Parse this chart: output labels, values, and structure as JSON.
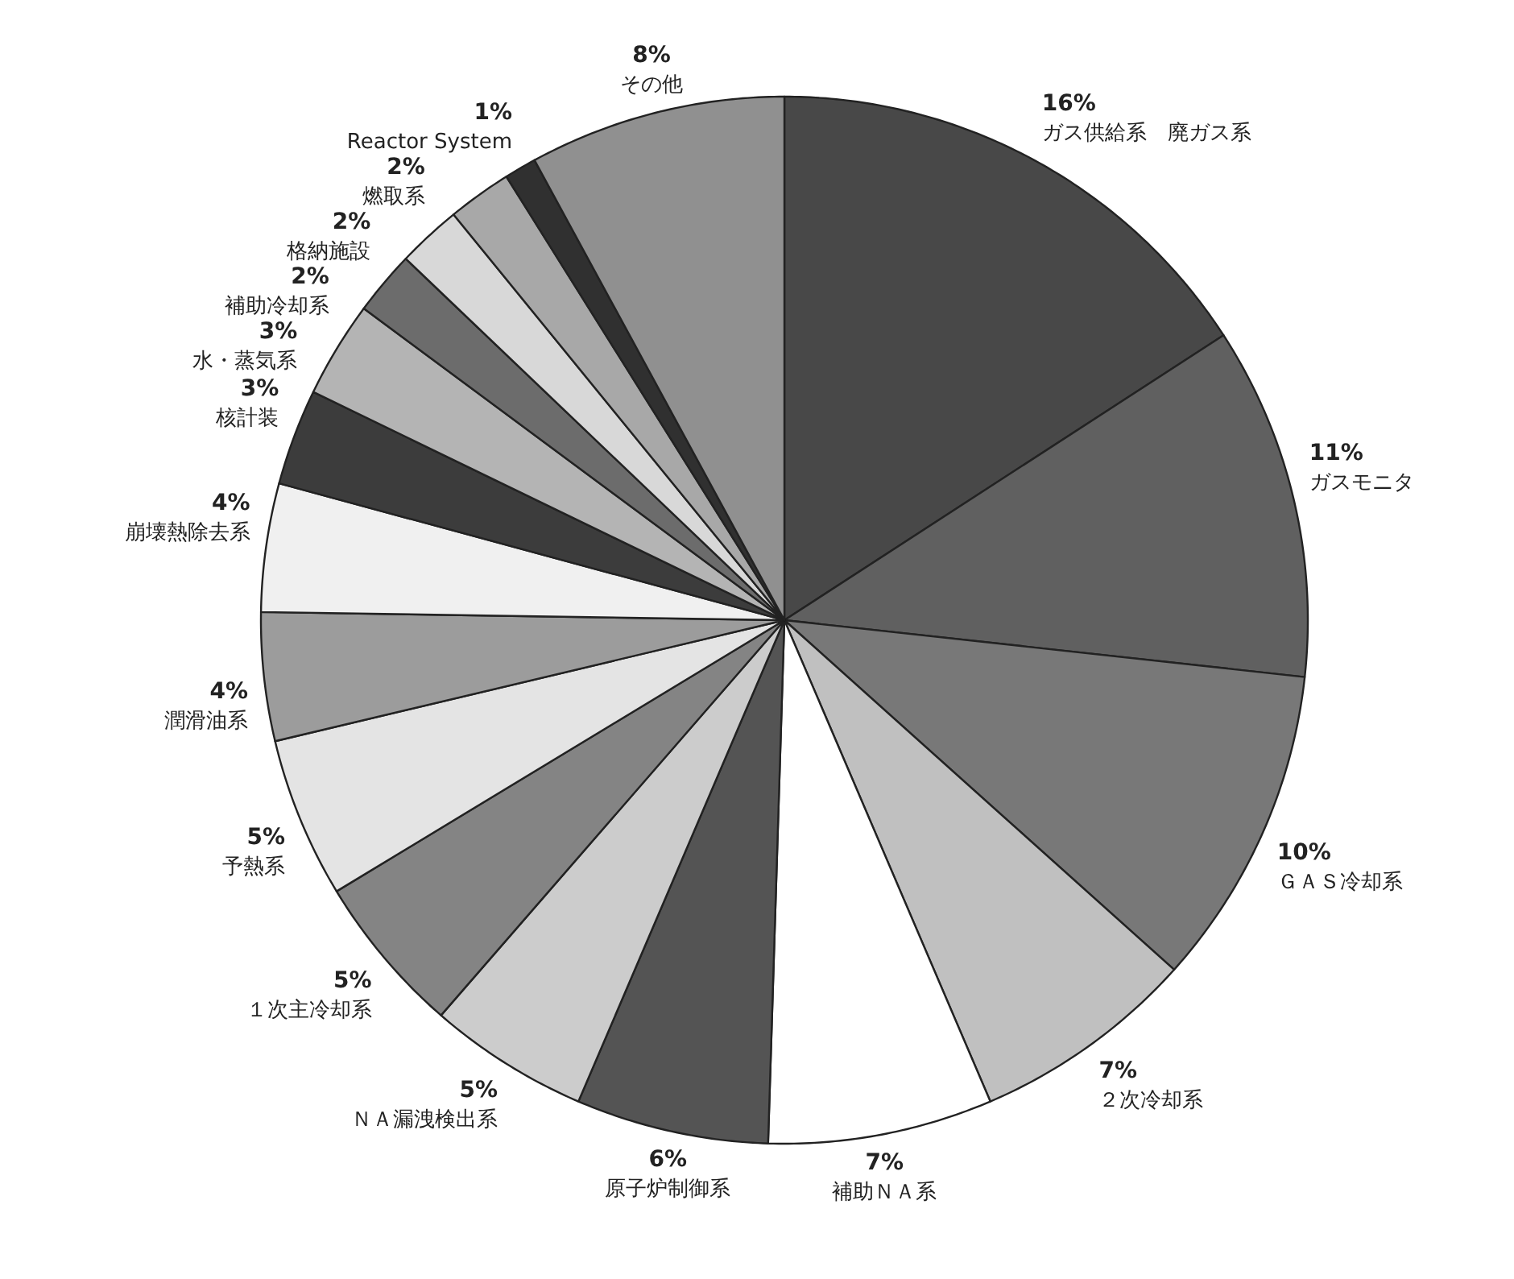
{
  "chart_data": {
    "type": "pie",
    "categories": [
      "ガス供給系　廃ガス系",
      "ガスモニタ",
      "ＧＡＳ冷却系",
      "２次冷却系",
      "補助ＮＡ系",
      "原子炉制御系",
      "ＮＡ漏洩検出系",
      "１次主冷却系",
      "予熱系",
      "潤滑油系",
      "崩壊熱除去系",
      "核計装",
      "水・蒸気系",
      "補助冷却系",
      "格納施設",
      "燃取系",
      "Reactor System",
      "その他"
    ],
    "values": [
      16,
      11,
      10,
      7,
      7,
      6,
      5,
      5,
      5,
      4,
      4,
      3,
      3,
      2,
      2,
      2,
      1,
      8
    ],
    "value_labels": [
      "16%",
      "11%",
      "10%",
      "7%",
      "7%",
      "6%",
      "5%",
      "5%",
      "5%",
      "4%",
      "4%",
      "3%",
      "3%",
      "2%",
      "2%",
      "2%",
      "1%",
      "8%"
    ],
    "colors": [
      "#484848",
      "#606060",
      "#787878",
      "#c0c0c0",
      "#ffffff",
      "#545454",
      "#cccccc",
      "#848484",
      "#e4e4e4",
      "#9c9c9c",
      "#f0f0f0",
      "#3c3c3c",
      "#b4b4b4",
      "#6c6c6c",
      "#d8d8d8",
      "#a8a8a8",
      "#303030",
      "#909090"
    ]
  }
}
